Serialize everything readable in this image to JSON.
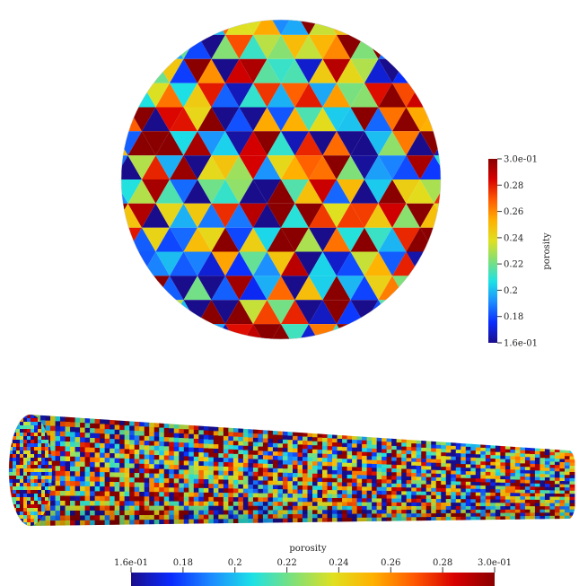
{
  "figure": {
    "field_name": "porosity",
    "range": [
      0.16,
      0.3
    ],
    "palette": [
      "#1a0d8c",
      "#0a2cff",
      "#1c8cff",
      "#1ce1e6",
      "#7ee07a",
      "#e0e020",
      "#ffb000",
      "#ff5a00",
      "#d80000",
      "#8a0000"
    ]
  },
  "cross_section": {
    "name": "disk-cross-section"
  },
  "cylinder": {
    "name": "cylinder-view"
  },
  "colorbar_vertical": {
    "title": "porosity",
    "ticks": [
      {
        "label": "3.0e-01",
        "value": 0.3
      },
      {
        "label": "0.28",
        "value": 0.28
      },
      {
        "label": "0.26",
        "value": 0.26
      },
      {
        "label": "0.24",
        "value": 0.24
      },
      {
        "label": "0.22",
        "value": 0.22
      },
      {
        "label": "0.2",
        "value": 0.2
      },
      {
        "label": "0.18",
        "value": 0.18
      },
      {
        "label": "1.6e-01",
        "value": 0.16
      }
    ]
  },
  "colorbar_horizontal": {
    "title": "porosity",
    "ticks": [
      {
        "label": "1.6e-01",
        "value": 0.16
      },
      {
        "label": "0.18",
        "value": 0.18
      },
      {
        "label": "0.2",
        "value": 0.2
      },
      {
        "label": "0.22",
        "value": 0.22
      },
      {
        "label": "0.24",
        "value": 0.24
      },
      {
        "label": "0.26",
        "value": 0.26
      },
      {
        "label": "0.28",
        "value": 0.28
      },
      {
        "label": "3.0e-01",
        "value": 0.3
      }
    ]
  }
}
